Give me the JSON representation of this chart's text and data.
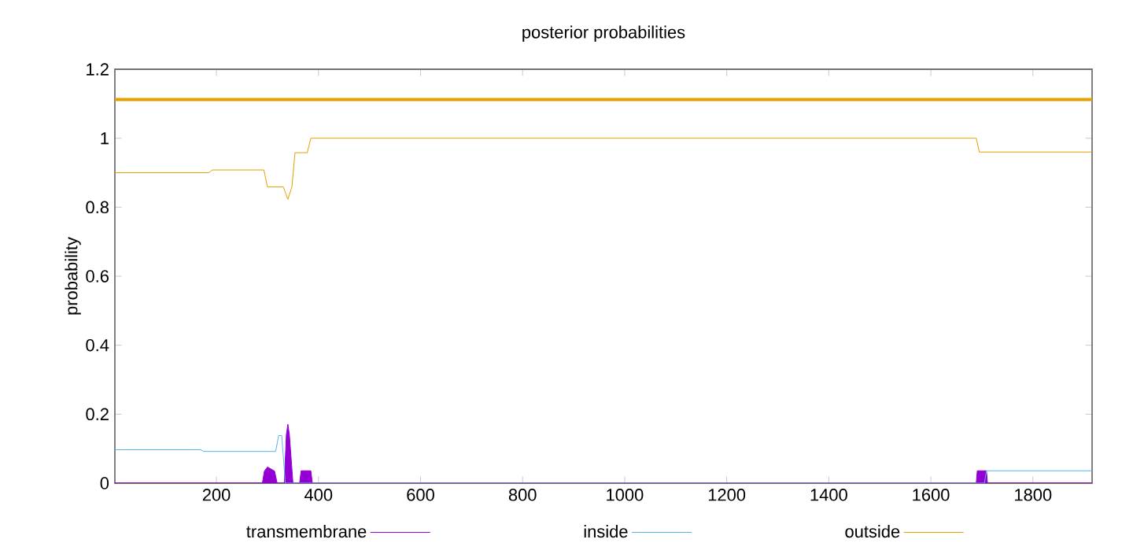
{
  "chart_data": {
    "type": "line",
    "title": "posterior probabilities",
    "ylabel": "probability",
    "xlim": [
      1,
      1916
    ],
    "ylim": [
      0,
      1.2
    ],
    "xticks": [
      200,
      400,
      600,
      800,
      1000,
      1200,
      1400,
      1600,
      1800
    ],
    "yticks": [
      {
        "value": 0,
        "label": "0"
      },
      {
        "value": 0.2,
        "label": "0.2"
      },
      {
        "value": 0.4,
        "label": "0.4"
      },
      {
        "value": 0.6,
        "label": "0.6"
      },
      {
        "value": 0.8,
        "label": "0.8"
      },
      {
        "value": 1,
        "label": "1"
      },
      {
        "value": 1.2,
        "label": "1.2"
      }
    ],
    "legend": "bottom",
    "series": [
      {
        "name": "transmembrane",
        "type": "area",
        "color": "#9400d3",
        "x": [
          1,
          290,
          294,
          300,
          314,
          319,
          329,
          333,
          337,
          340,
          343,
          350,
          363,
          366,
          385,
          388,
          1689,
          1691,
          1709,
          1711,
          1916
        ],
        "values": [
          0,
          0,
          0.035,
          0.047,
          0.035,
          0,
          0,
          0,
          0.14,
          0.171,
          0.14,
          0,
          0,
          0.036,
          0.036,
          0,
          0,
          0.036,
          0.036,
          0,
          0
        ]
      },
      {
        "name": "inside",
        "color": "#56b4e9",
        "x": [
          1,
          169,
          175,
          316,
          322,
          328,
          335,
          1705,
          1709,
          1916
        ],
        "values": [
          0.097,
          0.097,
          0.092,
          0.092,
          0.138,
          0.138,
          0,
          0,
          0.036,
          0.036
        ]
      },
      {
        "name": "outside",
        "color": "#e69f00",
        "x": [
          1,
          185,
          192,
          293,
          300,
          331,
          340,
          348,
          354,
          378,
          385,
          1689,
          1695,
          1916
        ],
        "values": [
          0.9,
          0.9,
          0.908,
          0.908,
          0.859,
          0.859,
          0.823,
          0.86,
          0.958,
          0.958,
          1.0,
          1.0,
          0.96,
          0.96
        ]
      },
      {
        "color": "#e69f00",
        "x": [
          1,
          1916
        ],
        "values": [
          1.112,
          1.112
        ]
      }
    ]
  }
}
